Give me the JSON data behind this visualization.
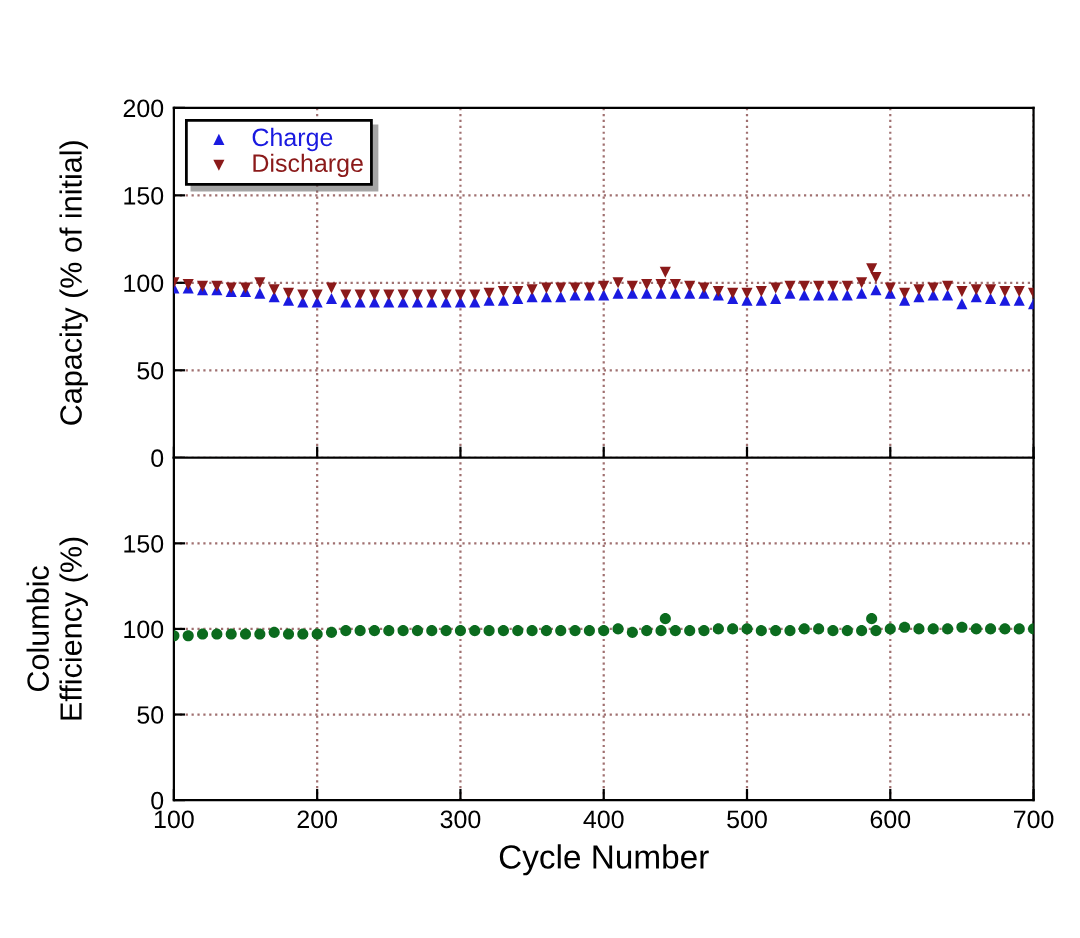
{
  "chart_data": [
    {
      "type": "scatter",
      "ylabel": "Capacity (% of initial)",
      "xlim": [
        100,
        700
      ],
      "xticks": [
        100,
        200,
        300,
        400,
        500,
        600,
        700
      ],
      "ylim": [
        0,
        200
      ],
      "yticks": [
        0,
        50,
        100,
        150,
        200
      ],
      "grid": true,
      "legend": "top left",
      "tick_labels": "y",
      "series": [
        {
          "name": "Charge",
          "color": "#1a1ae0",
          "marker": "triangle",
          "x": [
            100,
            110,
            120,
            130,
            140,
            150,
            160,
            170,
            180,
            190,
            200,
            210,
            220,
            230,
            240,
            250,
            260,
            270,
            280,
            290,
            300,
            310,
            320,
            330,
            340,
            350,
            360,
            370,
            380,
            390,
            400,
            410,
            420,
            430,
            440,
            450,
            460,
            470,
            480,
            490,
            500,
            510,
            520,
            530,
            540,
            550,
            560,
            570,
            580,
            590,
            600,
            610,
            620,
            630,
            640,
            650,
            660,
            670,
            680,
            690,
            700
          ],
          "values": [
            97,
            97,
            96,
            96,
            95,
            95,
            94,
            92,
            90,
            89,
            89,
            91,
            89,
            89,
            89,
            89,
            89,
            89,
            89,
            89,
            89,
            89,
            90,
            90,
            91,
            92,
            92,
            92,
            93,
            93,
            93,
            94,
            94,
            94,
            94,
            94,
            94,
            94,
            93,
            91,
            90,
            90,
            91,
            94,
            93,
            93,
            93,
            93,
            94,
            96,
            94,
            90,
            92,
            93,
            93,
            88,
            92,
            91,
            90,
            90,
            88
          ]
        },
        {
          "name": "Discharge",
          "color": "#8b1a1a",
          "marker": "triangle_down",
          "x": [
            100,
            110,
            120,
            130,
            140,
            150,
            160,
            170,
            180,
            190,
            200,
            210,
            220,
            230,
            240,
            250,
            260,
            270,
            280,
            290,
            300,
            310,
            320,
            330,
            340,
            350,
            360,
            370,
            380,
            390,
            400,
            410,
            420,
            430,
            440,
            443,
            450,
            460,
            470,
            480,
            490,
            500,
            510,
            520,
            530,
            540,
            550,
            560,
            570,
            580,
            587,
            590,
            600,
            610,
            620,
            630,
            640,
            650,
            660,
            670,
            680,
            690,
            700
          ],
          "values": [
            100,
            99,
            98,
            98,
            97,
            97,
            100,
            96,
            94,
            93,
            93,
            97,
            93,
            93,
            93,
            93,
            93,
            93,
            93,
            93,
            93,
            93,
            94,
            95,
            95,
            96,
            97,
            97,
            97,
            97,
            98,
            100,
            98,
            99,
            99,
            106,
            99,
            98,
            97,
            95,
            94,
            94,
            95,
            97,
            98,
            98,
            98,
            98,
            98,
            100,
            108,
            103,
            97,
            94,
            96,
            97,
            98,
            95,
            96,
            96,
            95,
            95,
            94
          ]
        }
      ]
    },
    {
      "type": "scatter",
      "xlabel": "Cycle Number",
      "ylabel": "Columbic\nEfficiency (%)",
      "xlim": [
        100,
        700
      ],
      "xticks": [
        100,
        200,
        300,
        400,
        500,
        600,
        700
      ],
      "ylim": [
        0,
        200
      ],
      "yticks": [
        0,
        50,
        100,
        150
      ],
      "grid": true,
      "series": [
        {
          "color": "#0b6b1e",
          "marker": "circle",
          "x": [
            100,
            110,
            120,
            130,
            140,
            150,
            160,
            170,
            180,
            190,
            200,
            210,
            220,
            230,
            240,
            250,
            260,
            270,
            280,
            290,
            300,
            310,
            320,
            330,
            340,
            350,
            360,
            370,
            380,
            390,
            400,
            410,
            420,
            430,
            440,
            443,
            450,
            460,
            470,
            480,
            490,
            500,
            510,
            520,
            530,
            540,
            550,
            560,
            570,
            580,
            587,
            590,
            600,
            610,
            620,
            630,
            640,
            650,
            660,
            670,
            680,
            690,
            700
          ],
          "values": [
            96,
            96,
            97,
            97,
            97,
            97,
            97,
            98,
            97,
            97,
            97,
            98,
            99,
            99,
            99,
            99,
            99,
            99,
            99,
            99,
            99,
            99,
            99,
            99,
            99,
            99,
            99,
            99,
            99,
            99,
            99,
            100,
            98,
            99,
            99,
            106,
            99,
            99,
            99,
            100,
            100,
            100,
            99,
            99,
            99,
            100,
            100,
            99,
            99,
            99,
            106,
            99,
            100,
            101,
            100,
            100,
            100,
            101,
            100,
            100,
            100,
            100,
            100
          ]
        }
      ]
    }
  ]
}
